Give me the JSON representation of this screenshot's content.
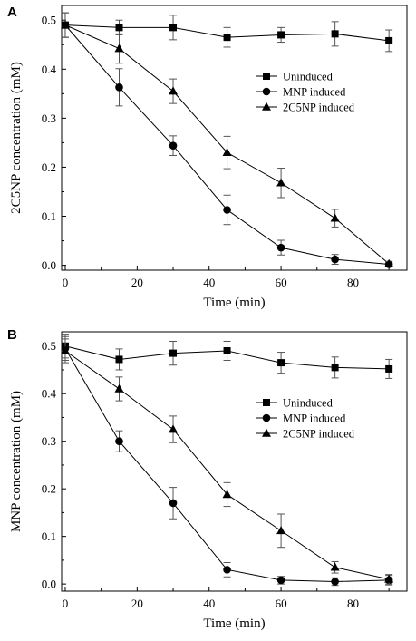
{
  "chart_data": [
    {
      "panel": "A",
      "type": "line",
      "xlabel": "Time (min)",
      "ylabel": "2C5NP concentration (mM)",
      "xlim": [
        -1,
        95
      ],
      "ylim": [
        -0.01,
        0.53
      ],
      "xticks": [
        0,
        20,
        40,
        60,
        80
      ],
      "yticks": [
        0.0,
        0.1,
        0.2,
        0.3,
        0.4,
        0.5
      ],
      "ytick_labels": [
        "0.0",
        "0.1",
        "0.2",
        "0.3",
        "0.4",
        "0.5"
      ],
      "legend_position": "right",
      "series": [
        {
          "name": "Uninduced",
          "marker": "square",
          "x": [
            0,
            15,
            30,
            45,
            60,
            75,
            90
          ],
          "y": [
            0.49,
            0.485,
            0.485,
            0.465,
            0.47,
            0.472,
            0.458
          ],
          "err": [
            0.025,
            0.015,
            0.025,
            0.02,
            0.015,
            0.025,
            0.022
          ]
        },
        {
          "name": "MNP induced",
          "marker": "circle",
          "x": [
            0,
            15,
            30,
            45,
            60,
            75,
            90
          ],
          "y": [
            0.49,
            0.363,
            0.244,
            0.113,
            0.036,
            0.012,
            0.002
          ],
          "err": [
            0.025,
            0.038,
            0.02,
            0.03,
            0.015,
            0.01,
            0.005
          ]
        },
        {
          "name": "2C5NP induced",
          "marker": "triangle",
          "x": [
            0,
            15,
            30,
            45,
            60,
            75,
            90
          ],
          "y": [
            0.49,
            0.442,
            0.355,
            0.23,
            0.168,
            0.096,
            0.003
          ],
          "err": [
            0.025,
            0.03,
            0.025,
            0.033,
            0.03,
            0.018,
            0.005
          ]
        }
      ]
    },
    {
      "panel": "B",
      "type": "line",
      "xlabel": "Time (min)",
      "ylabel": "MNP concentration (mM)",
      "xlim": [
        -1,
        95
      ],
      "ylim": [
        -0.015,
        0.53
      ],
      "xticks": [
        0,
        20,
        40,
        60,
        80
      ],
      "yticks": [
        0.0,
        0.1,
        0.2,
        0.3,
        0.4,
        0.5
      ],
      "ytick_labels": [
        "0.0",
        "0.1",
        "0.2",
        "0.3",
        "0.4",
        "0.5"
      ],
      "legend_position": "right",
      "series": [
        {
          "name": "Uninduced",
          "marker": "square",
          "x": [
            0,
            15,
            30,
            45,
            60,
            75,
            90
          ],
          "y": [
            0.5,
            0.472,
            0.485,
            0.49,
            0.465,
            0.455,
            0.452
          ],
          "err": [
            0.025,
            0.022,
            0.025,
            0.02,
            0.022,
            0.022,
            0.02
          ]
        },
        {
          "name": "MNP induced",
          "marker": "circle",
          "x": [
            0,
            15,
            30,
            45,
            60,
            75,
            90
          ],
          "y": [
            0.495,
            0.3,
            0.17,
            0.03,
            0.008,
            0.005,
            0.008
          ],
          "err": [
            0.025,
            0.022,
            0.033,
            0.015,
            0.008,
            0.008,
            0.01
          ]
        },
        {
          "name": "2C5NP induced",
          "marker": "triangle",
          "x": [
            0,
            15,
            30,
            45,
            60,
            75,
            90
          ],
          "y": [
            0.49,
            0.41,
            0.325,
            0.188,
            0.112,
            0.035,
            0.01
          ],
          "err": [
            0.025,
            0.025,
            0.028,
            0.025,
            0.035,
            0.012,
            0.01
          ]
        }
      ]
    }
  ]
}
